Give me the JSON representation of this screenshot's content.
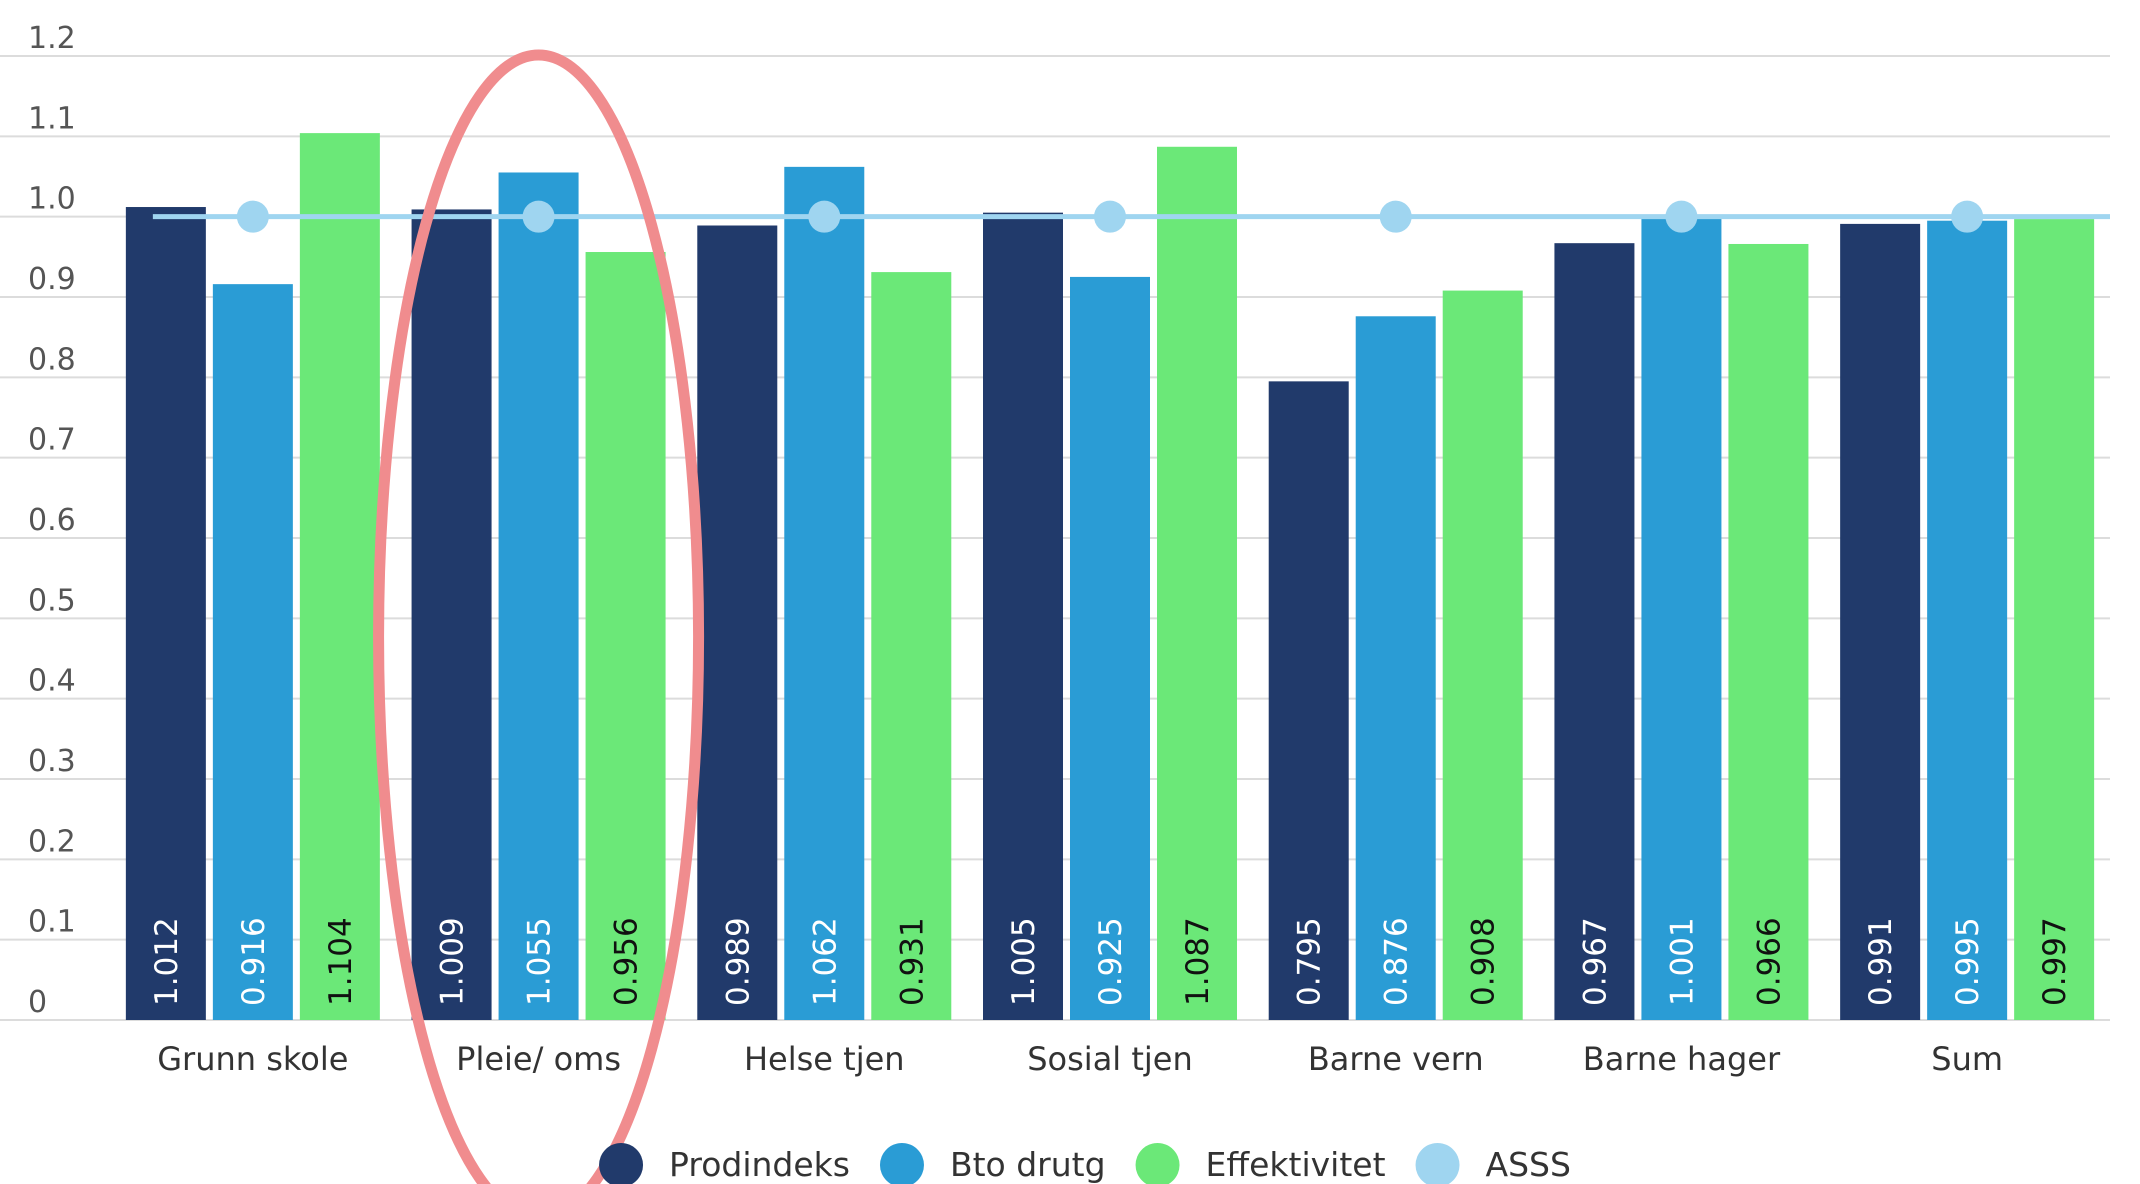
{
  "chart_data": {
    "type": "bar",
    "categories": [
      "Grunn skole",
      "Pleie/ oms",
      "Helse tjen",
      "Sosial tjen",
      "Barne vern",
      "Barne hager",
      "Sum"
    ],
    "series": [
      {
        "name": "Prodindeks",
        "color": "#213a6b",
        "label_color": "#ffffff",
        "values": [
          1.012,
          1.009,
          0.989,
          1.005,
          0.795,
          0.967,
          0.991
        ],
        "labels": [
          "1.012",
          "1.009",
          "0.989",
          "1.005",
          "0.795",
          "0.967",
          "0.991"
        ]
      },
      {
        "name": "Bto drutg",
        "color": "#2a9cd5",
        "label_color": "#ffffff",
        "values": [
          0.916,
          1.055,
          1.062,
          0.925,
          0.876,
          1.001,
          0.995
        ],
        "labels": [
          "0.916",
          "1.055",
          "1.062",
          "0.925",
          "0.876",
          "1.001",
          "0.995"
        ]
      },
      {
        "name": "Effektivitet",
        "color": "#6be878",
        "label_color": "#111111",
        "values": [
          1.104,
          0.956,
          0.931,
          1.087,
          0.908,
          0.966,
          0.997
        ],
        "labels": [
          "1.104",
          "0.956",
          "0.931",
          "1.087",
          "0.908",
          "0.966",
          "0.997"
        ]
      }
    ],
    "line_series": {
      "name": "ASSS",
      "color": "#9fd5f0",
      "values": [
        1.0,
        1.0,
        1.0,
        1.0,
        1.0,
        1.0,
        1.0
      ]
    },
    "y_ticks": [
      "0",
      "0.1",
      "0.2",
      "0.3",
      "0.4",
      "0.5",
      "0.6",
      "0.7",
      "0.8",
      "0.9",
      "1.0",
      "1.1",
      "1.2"
    ],
    "ylim": [
      0,
      1.2
    ],
    "grid": true,
    "legend_position": "bottom-center",
    "highlight": {
      "category": "Pleie/ oms",
      "shape": "ellipse",
      "color": "#f08c8e"
    },
    "title": "",
    "xlabel": "",
    "ylabel": ""
  }
}
